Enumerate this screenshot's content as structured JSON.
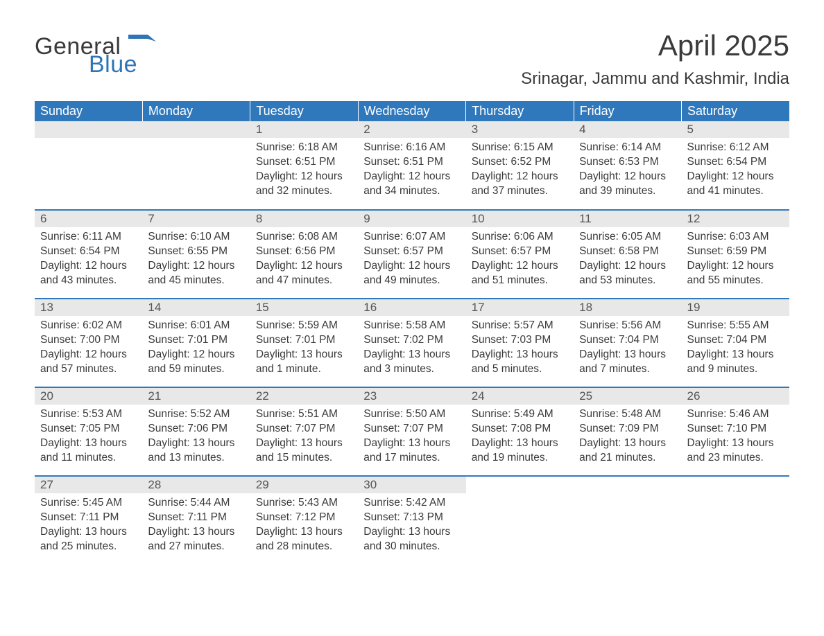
{
  "brand": {
    "word1": "General",
    "word2": "Blue",
    "color_accent": "#2f75b5"
  },
  "page": {
    "title": "April 2025",
    "location": "Srinagar, Jammu and Kashmir, India"
  },
  "colors": {
    "header_bg": "#3078bc",
    "header_text": "#ffffff",
    "daynum_bg": "#e8e8e8",
    "row_divider": "#3078bc",
    "body_text": "#3a3a3a",
    "background": "#ffffff"
  },
  "calendar": {
    "columns": [
      "Sunday",
      "Monday",
      "Tuesday",
      "Wednesday",
      "Thursday",
      "Friday",
      "Saturday"
    ],
    "weeks": [
      [
        null,
        null,
        {
          "d": "1",
          "sunrise": "Sunrise: 6:18 AM",
          "sunset": "Sunset: 6:51 PM",
          "day1": "Daylight: 12 hours",
          "day2": "and 32 minutes."
        },
        {
          "d": "2",
          "sunrise": "Sunrise: 6:16 AM",
          "sunset": "Sunset: 6:51 PM",
          "day1": "Daylight: 12 hours",
          "day2": "and 34 minutes."
        },
        {
          "d": "3",
          "sunrise": "Sunrise: 6:15 AM",
          "sunset": "Sunset: 6:52 PM",
          "day1": "Daylight: 12 hours",
          "day2": "and 37 minutes."
        },
        {
          "d": "4",
          "sunrise": "Sunrise: 6:14 AM",
          "sunset": "Sunset: 6:53 PM",
          "day1": "Daylight: 12 hours",
          "day2": "and 39 minutes."
        },
        {
          "d": "5",
          "sunrise": "Sunrise: 6:12 AM",
          "sunset": "Sunset: 6:54 PM",
          "day1": "Daylight: 12 hours",
          "day2": "and 41 minutes."
        }
      ],
      [
        {
          "d": "6",
          "sunrise": "Sunrise: 6:11 AM",
          "sunset": "Sunset: 6:54 PM",
          "day1": "Daylight: 12 hours",
          "day2": "and 43 minutes."
        },
        {
          "d": "7",
          "sunrise": "Sunrise: 6:10 AM",
          "sunset": "Sunset: 6:55 PM",
          "day1": "Daylight: 12 hours",
          "day2": "and 45 minutes."
        },
        {
          "d": "8",
          "sunrise": "Sunrise: 6:08 AM",
          "sunset": "Sunset: 6:56 PM",
          "day1": "Daylight: 12 hours",
          "day2": "and 47 minutes."
        },
        {
          "d": "9",
          "sunrise": "Sunrise: 6:07 AM",
          "sunset": "Sunset: 6:57 PM",
          "day1": "Daylight: 12 hours",
          "day2": "and 49 minutes."
        },
        {
          "d": "10",
          "sunrise": "Sunrise: 6:06 AM",
          "sunset": "Sunset: 6:57 PM",
          "day1": "Daylight: 12 hours",
          "day2": "and 51 minutes."
        },
        {
          "d": "11",
          "sunrise": "Sunrise: 6:05 AM",
          "sunset": "Sunset: 6:58 PM",
          "day1": "Daylight: 12 hours",
          "day2": "and 53 minutes."
        },
        {
          "d": "12",
          "sunrise": "Sunrise: 6:03 AM",
          "sunset": "Sunset: 6:59 PM",
          "day1": "Daylight: 12 hours",
          "day2": "and 55 minutes."
        }
      ],
      [
        {
          "d": "13",
          "sunrise": "Sunrise: 6:02 AM",
          "sunset": "Sunset: 7:00 PM",
          "day1": "Daylight: 12 hours",
          "day2": "and 57 minutes."
        },
        {
          "d": "14",
          "sunrise": "Sunrise: 6:01 AM",
          "sunset": "Sunset: 7:01 PM",
          "day1": "Daylight: 12 hours",
          "day2": "and 59 minutes."
        },
        {
          "d": "15",
          "sunrise": "Sunrise: 5:59 AM",
          "sunset": "Sunset: 7:01 PM",
          "day1": "Daylight: 13 hours",
          "day2": "and 1 minute."
        },
        {
          "d": "16",
          "sunrise": "Sunrise: 5:58 AM",
          "sunset": "Sunset: 7:02 PM",
          "day1": "Daylight: 13 hours",
          "day2": "and 3 minutes."
        },
        {
          "d": "17",
          "sunrise": "Sunrise: 5:57 AM",
          "sunset": "Sunset: 7:03 PM",
          "day1": "Daylight: 13 hours",
          "day2": "and 5 minutes."
        },
        {
          "d": "18",
          "sunrise": "Sunrise: 5:56 AM",
          "sunset": "Sunset: 7:04 PM",
          "day1": "Daylight: 13 hours",
          "day2": "and 7 minutes."
        },
        {
          "d": "19",
          "sunrise": "Sunrise: 5:55 AM",
          "sunset": "Sunset: 7:04 PM",
          "day1": "Daylight: 13 hours",
          "day2": "and 9 minutes."
        }
      ],
      [
        {
          "d": "20",
          "sunrise": "Sunrise: 5:53 AM",
          "sunset": "Sunset: 7:05 PM",
          "day1": "Daylight: 13 hours",
          "day2": "and 11 minutes."
        },
        {
          "d": "21",
          "sunrise": "Sunrise: 5:52 AM",
          "sunset": "Sunset: 7:06 PM",
          "day1": "Daylight: 13 hours",
          "day2": "and 13 minutes."
        },
        {
          "d": "22",
          "sunrise": "Sunrise: 5:51 AM",
          "sunset": "Sunset: 7:07 PM",
          "day1": "Daylight: 13 hours",
          "day2": "and 15 minutes."
        },
        {
          "d": "23",
          "sunrise": "Sunrise: 5:50 AM",
          "sunset": "Sunset: 7:07 PM",
          "day1": "Daylight: 13 hours",
          "day2": "and 17 minutes."
        },
        {
          "d": "24",
          "sunrise": "Sunrise: 5:49 AM",
          "sunset": "Sunset: 7:08 PM",
          "day1": "Daylight: 13 hours",
          "day2": "and 19 minutes."
        },
        {
          "d": "25",
          "sunrise": "Sunrise: 5:48 AM",
          "sunset": "Sunset: 7:09 PM",
          "day1": "Daylight: 13 hours",
          "day2": "and 21 minutes."
        },
        {
          "d": "26",
          "sunrise": "Sunrise: 5:46 AM",
          "sunset": "Sunset: 7:10 PM",
          "day1": "Daylight: 13 hours",
          "day2": "and 23 minutes."
        }
      ],
      [
        {
          "d": "27",
          "sunrise": "Sunrise: 5:45 AM",
          "sunset": "Sunset: 7:11 PM",
          "day1": "Daylight: 13 hours",
          "day2": "and 25 minutes."
        },
        {
          "d": "28",
          "sunrise": "Sunrise: 5:44 AM",
          "sunset": "Sunset: 7:11 PM",
          "day1": "Daylight: 13 hours",
          "day2": "and 27 minutes."
        },
        {
          "d": "29",
          "sunrise": "Sunrise: 5:43 AM",
          "sunset": "Sunset: 7:12 PM",
          "day1": "Daylight: 13 hours",
          "day2": "and 28 minutes."
        },
        {
          "d": "30",
          "sunrise": "Sunrise: 5:42 AM",
          "sunset": "Sunset: 7:13 PM",
          "day1": "Daylight: 13 hours",
          "day2": "and 30 minutes."
        },
        null,
        null,
        null
      ]
    ]
  }
}
